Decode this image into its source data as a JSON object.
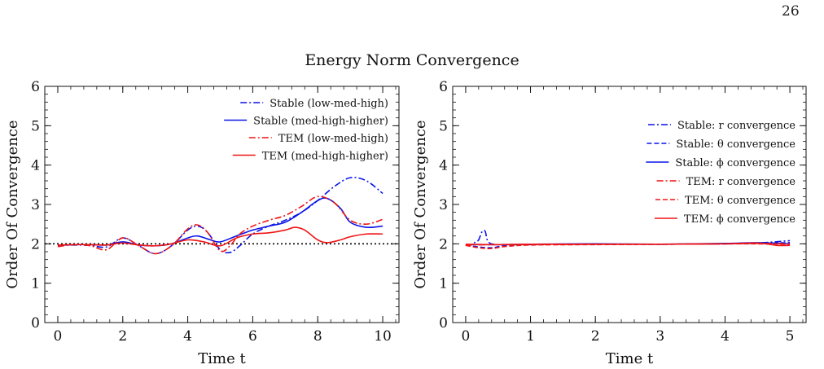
{
  "page": {
    "number": "26"
  },
  "figure": {
    "suptitle": "Energy Norm Convergence"
  },
  "colors": {
    "blue": "#0a14e6",
    "red": "#f01414",
    "ref": "#000000"
  },
  "chart_data": [
    {
      "type": "line",
      "xlabel": "Time t",
      "ylabel": "Order Of Convergence",
      "xlim": [
        -0.4,
        10.5
      ],
      "ylim": [
        0,
        6
      ],
      "xticks": [
        "0",
        "2",
        "4",
        "6",
        "8",
        "10"
      ],
      "yticks": [
        "0",
        "1",
        "2",
        "3",
        "4",
        "5",
        "6"
      ],
      "legend_position": "top-right",
      "reference_line": {
        "y": 2,
        "style": "dotted"
      },
      "series": [
        {
          "name": "Stable (low-med-high)",
          "color": "blue",
          "dash": "dashdot",
          "x": [
            0,
            0.5,
            1,
            1.5,
            2,
            2.5,
            3,
            3.5,
            4,
            4.3,
            4.6,
            5,
            5.3,
            5.6,
            6,
            6.5,
            7,
            7.5,
            8,
            8.5,
            9,
            9.5,
            10
          ],
          "y": [
            1.95,
            1.97,
            1.96,
            1.92,
            2.15,
            1.95,
            1.75,
            1.95,
            2.35,
            2.45,
            2.3,
            1.85,
            1.78,
            1.95,
            2.25,
            2.45,
            2.6,
            2.8,
            3.1,
            3.45,
            3.68,
            3.6,
            3.28
          ]
        },
        {
          "name": "Stable (med-high-higher)",
          "color": "blue",
          "dash": "solid",
          "x": [
            0,
            0.5,
            1,
            1.5,
            2,
            2.5,
            3,
            3.5,
            4,
            4.3,
            4.7,
            5,
            5.5,
            6,
            6.5,
            7,
            7.5,
            8,
            8.3,
            8.7,
            9,
            9.5,
            10
          ],
          "y": [
            1.96,
            1.98,
            1.98,
            1.97,
            2.05,
            1.97,
            1.95,
            2.0,
            2.15,
            2.2,
            2.1,
            2.05,
            2.2,
            2.35,
            2.45,
            2.55,
            2.8,
            3.1,
            3.15,
            2.9,
            2.55,
            2.42,
            2.45
          ]
        },
        {
          "name": "TEM (low-med-high)",
          "color": "red",
          "dash": "dashdot",
          "x": [
            0,
            0.5,
            1,
            1.5,
            2,
            2.5,
            3,
            3.5,
            4,
            4.3,
            4.6,
            5,
            5.3,
            5.6,
            6,
            6.5,
            7,
            7.5,
            8,
            8.5,
            9,
            9.5,
            10
          ],
          "y": [
            1.93,
            1.98,
            1.95,
            1.85,
            2.15,
            1.95,
            1.75,
            1.95,
            2.38,
            2.48,
            2.3,
            1.82,
            1.95,
            2.25,
            2.45,
            2.6,
            2.72,
            2.95,
            3.2,
            3.05,
            2.6,
            2.5,
            2.62
          ]
        },
        {
          "name": "TEM (med-high-higher)",
          "color": "red",
          "dash": "solid",
          "x": [
            0,
            0.5,
            1,
            1.5,
            2,
            2.5,
            3,
            3.5,
            4,
            4.5,
            5,
            5.5,
            6,
            6.5,
            7,
            7.3,
            7.6,
            8,
            8.3,
            8.7,
            9,
            9.5,
            10
          ],
          "y": [
            1.97,
            1.98,
            1.98,
            1.97,
            2.02,
            1.97,
            1.95,
            2.0,
            2.1,
            2.05,
            1.95,
            2.15,
            2.25,
            2.28,
            2.35,
            2.42,
            2.35,
            2.1,
            2.03,
            2.1,
            2.18,
            2.25,
            2.25
          ]
        }
      ]
    },
    {
      "type": "line",
      "xlabel": "Time t",
      "ylabel": "Order Of Convergence",
      "xlim": [
        -0.2,
        5.25
      ],
      "ylim": [
        0,
        6
      ],
      "xticks": [
        "0",
        "1",
        "2",
        "3",
        "4",
        "5"
      ],
      "yticks": [
        "0",
        "1",
        "2",
        "3",
        "4",
        "5",
        "6"
      ],
      "legend_position": "top-right",
      "series": [
        {
          "name": "Stable: r convergence",
          "color": "blue",
          "dash": "dashdot",
          "x": [
            0,
            0.1,
            0.15,
            0.2,
            0.25,
            0.3,
            0.35,
            0.5,
            1,
            2,
            3,
            4,
            4.5,
            5
          ],
          "y": [
            1.97,
            1.98,
            2.05,
            2.1,
            2.3,
            2.32,
            2.05,
            1.98,
            1.98,
            1.99,
            1.99,
            2.0,
            2.02,
            2.08
          ]
        },
        {
          "name": "Stable: θ convergence",
          "color": "blue",
          "dash": "dashed",
          "x": [
            0,
            0.2,
            0.4,
            0.6,
            1,
            2,
            3,
            4,
            4.5,
            5
          ],
          "y": [
            1.97,
            1.92,
            1.9,
            1.95,
            1.98,
            1.99,
            1.99,
            2.0,
            2.01,
            2.03
          ]
        },
        {
          "name": "Stable: ϕ convergence",
          "color": "blue",
          "dash": "solid",
          "x": [
            0,
            0.5,
            1,
            2,
            3,
            4,
            4.5,
            5
          ],
          "y": [
            1.98,
            1.98,
            1.99,
            2.0,
            1.99,
            2.01,
            2.03,
            2.0
          ]
        },
        {
          "name": "TEM: r convergence",
          "color": "red",
          "dash": "dashdot",
          "x": [
            0,
            0.5,
            1,
            2,
            3,
            4,
            4.5,
            5
          ],
          "y": [
            1.97,
            1.98,
            1.98,
            1.99,
            1.99,
            2.0,
            2.01,
            2.0
          ]
        },
        {
          "name": "TEM: θ convergence",
          "color": "red",
          "dash": "dashed",
          "x": [
            0,
            0.2,
            0.4,
            0.6,
            1,
            2,
            3,
            4,
            4.5,
            5
          ],
          "y": [
            1.96,
            1.9,
            1.88,
            1.93,
            1.97,
            1.98,
            1.99,
            2.0,
            2.0,
            1.99
          ]
        },
        {
          "name": "TEM: ϕ convergence",
          "color": "red",
          "dash": "solid",
          "x": [
            0,
            0.5,
            1,
            2,
            3,
            4,
            4.5,
            4.8,
            5
          ],
          "y": [
            1.99,
            1.98,
            1.99,
            1.99,
            1.99,
            2.0,
            2.02,
            1.96,
            1.96
          ]
        }
      ]
    }
  ]
}
